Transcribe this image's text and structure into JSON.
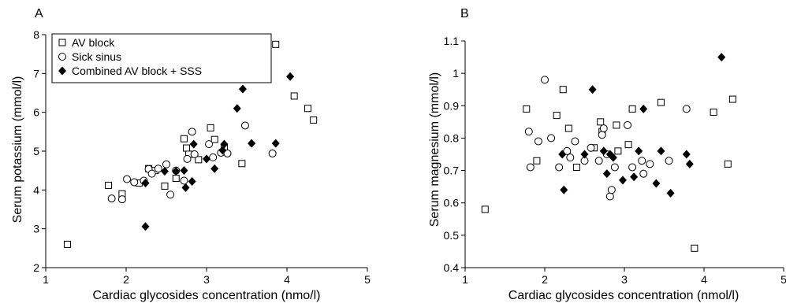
{
  "chart_data": [
    {
      "type": "scatter",
      "panel_label": "A",
      "xlabel": "Cardiac glycosides concentration (nmo/l)",
      "ylabel": "Serum potassium (mmol/l)",
      "xlim": [
        1,
        5
      ],
      "ylim": [
        2,
        8
      ],
      "xticks": [
        "1",
        "2",
        "3",
        "4",
        "5"
      ],
      "yticks": [
        "2",
        "3",
        "4",
        "5",
        "6",
        "7",
        "8"
      ],
      "legend": {
        "placement": "top-left",
        "entries": [
          "AV block",
          "Sick sinus",
          "Combined AV block + SSS"
        ]
      },
      "series": [
        {
          "name": "AV block",
          "marker": "open-square",
          "points": [
            [
              1.27,
              2.6
            ],
            [
              1.78,
              4.12
            ],
            [
              1.95,
              3.9
            ],
            [
              2.16,
              4.18
            ],
            [
              2.28,
              4.55
            ],
            [
              2.36,
              4.5
            ],
            [
              2.48,
              4.1
            ],
            [
              2.62,
              4.3
            ],
            [
              2.72,
              5.32
            ],
            [
              2.75,
              5.08
            ],
            [
              2.78,
              4.92
            ],
            [
              2.9,
              4.78
            ],
            [
              3.05,
              5.6
            ],
            [
              3.1,
              5.3
            ],
            [
              3.22,
              5.1
            ],
            [
              3.44,
              4.68
            ],
            [
              3.86,
              7.75
            ],
            [
              4.09,
              6.42
            ],
            [
              4.26,
              6.1
            ],
            [
              4.33,
              5.8
            ]
          ]
        },
        {
          "name": "Sick sinus",
          "marker": "open-circle",
          "points": [
            [
              1.82,
              3.78
            ],
            [
              1.95,
              3.76
            ],
            [
              2.01,
              4.28
            ],
            [
              2.1,
              4.2
            ],
            [
              2.22,
              4.24
            ],
            [
              2.28,
              4.54
            ],
            [
              2.32,
              4.42
            ],
            [
              2.4,
              4.55
            ],
            [
              2.5,
              4.66
            ],
            [
              2.55,
              3.88
            ],
            [
              2.62,
              4.5
            ],
            [
              2.72,
              4.24
            ],
            [
              2.76,
              4.8
            ],
            [
              2.82,
              5.5
            ],
            [
              2.85,
              4.92
            ],
            [
              3.03,
              5.18
            ],
            [
              3.08,
              4.84
            ],
            [
              3.18,
              4.96
            ],
            [
              3.26,
              4.94
            ],
            [
              3.48,
              5.66
            ],
            [
              3.82,
              4.94
            ]
          ]
        },
        {
          "name": "Combined AV block + SSS",
          "marker": "filled-diamond",
          "points": [
            [
              2.24,
              3.06
            ],
            [
              2.24,
              4.18
            ],
            [
              2.48,
              4.48
            ],
            [
              2.62,
              4.48
            ],
            [
              2.72,
              4.5
            ],
            [
              2.74,
              4.06
            ],
            [
              2.82,
              4.22
            ],
            [
              2.84,
              5.18
            ],
            [
              3.0,
              4.8
            ],
            [
              3.1,
              4.55
            ],
            [
              3.2,
              5.02
            ],
            [
              3.22,
              5.18
            ],
            [
              3.38,
              6.1
            ],
            [
              3.45,
              6.6
            ],
            [
              3.56,
              5.2
            ],
            [
              3.86,
              5.2
            ],
            [
              4.04,
              6.92
            ]
          ]
        }
      ]
    },
    {
      "type": "scatter",
      "panel_label": "B",
      "xlabel": "Cardiac glycosides concentration (nmol/l)",
      "ylabel": "Serum magnesium (mmol/l)",
      "xlim": [
        1,
        5
      ],
      "ylim": [
        0.4,
        1.1
      ],
      "xticks": [
        "1",
        "2",
        "3",
        "4",
        "5"
      ],
      "yticks": [
        "0.4",
        "0.5",
        "0.6",
        "0.7",
        "0.8",
        "0.9",
        "1",
        "1.1"
      ],
      "series": [
        {
          "name": "AV block",
          "marker": "open-square",
          "points": [
            [
              1.25,
              0.58
            ],
            [
              1.77,
              0.89
            ],
            [
              1.9,
              0.73
            ],
            [
              2.15,
              0.87
            ],
            [
              2.23,
              0.95
            ],
            [
              2.3,
              0.83
            ],
            [
              2.4,
              0.71
            ],
            [
              2.62,
              0.77
            ],
            [
              2.7,
              0.85
            ],
            [
              2.72,
              0.82
            ],
            [
              2.9,
              0.84
            ],
            [
              2.92,
              0.76
            ],
            [
              3.05,
              0.78
            ],
            [
              3.1,
              0.89
            ],
            [
              3.46,
              0.91
            ],
            [
              3.88,
              0.46
            ],
            [
              4.12,
              0.88
            ],
            [
              4.3,
              0.72
            ],
            [
              4.36,
              0.92
            ]
          ]
        },
        {
          "name": "Sick sinus",
          "marker": "open-circle",
          "points": [
            [
              1.8,
              0.82
            ],
            [
              1.82,
              0.71
            ],
            [
              1.92,
              0.79
            ],
            [
              2.0,
              0.98
            ],
            [
              2.08,
              0.8
            ],
            [
              2.18,
              0.71
            ],
            [
              2.28,
              0.76
            ],
            [
              2.32,
              0.74
            ],
            [
              2.38,
              0.79
            ],
            [
              2.5,
              0.73
            ],
            [
              2.58,
              0.77
            ],
            [
              2.68,
              0.73
            ],
            [
              2.72,
              0.81
            ],
            [
              2.74,
              0.83
            ],
            [
              2.78,
              0.75
            ],
            [
              2.82,
              0.62
            ],
            [
              2.84,
              0.64
            ],
            [
              2.88,
              0.71
            ],
            [
              3.04,
              0.84
            ],
            [
              3.1,
              0.71
            ],
            [
              3.22,
              0.73
            ],
            [
              3.24,
              0.69
            ],
            [
              3.32,
              0.72
            ],
            [
              3.56,
              0.73
            ],
            [
              3.78,
              0.89
            ]
          ]
        },
        {
          "name": "Combined AV block + SSS",
          "marker": "filled-diamond",
          "points": [
            [
              2.22,
              0.75
            ],
            [
              2.24,
              0.64
            ],
            [
              2.5,
              0.75
            ],
            [
              2.6,
              0.95
            ],
            [
              2.74,
              0.76
            ],
            [
              2.78,
              0.69
            ],
            [
              2.82,
              0.75
            ],
            [
              2.86,
              0.74
            ],
            [
              2.98,
              0.67
            ],
            [
              3.12,
              0.68
            ],
            [
              3.18,
              0.76
            ],
            [
              3.24,
              0.89
            ],
            [
              3.4,
              0.66
            ],
            [
              3.46,
              0.76
            ],
            [
              3.58,
              0.63
            ],
            [
              3.78,
              0.75
            ],
            [
              3.82,
              0.72
            ],
            [
              4.22,
              1.05
            ]
          ]
        }
      ]
    }
  ]
}
